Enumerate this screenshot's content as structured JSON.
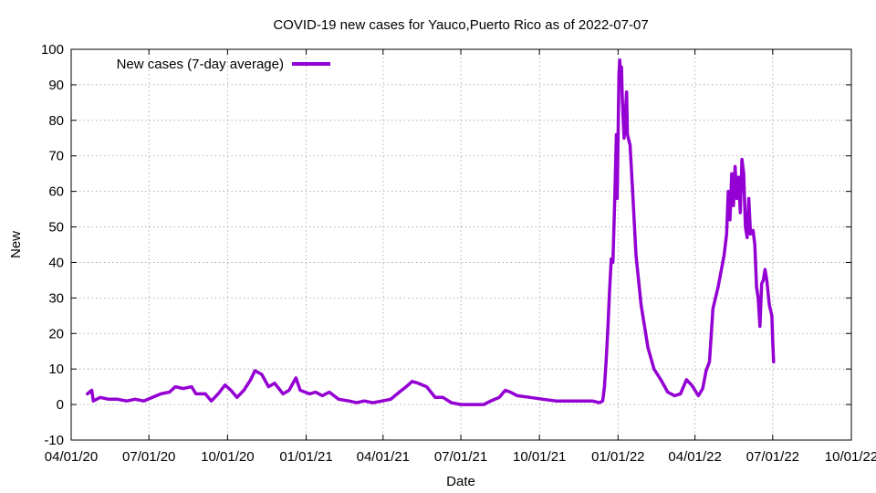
{
  "chart_data": {
    "type": "line",
    "title": "COVID-19 new cases for Yauco,Puerto Rico as of 2022-07-07",
    "xlabel": "Date",
    "ylabel": "New",
    "xlim": [
      "2020-04-01",
      "2022-10-01"
    ],
    "ylim": [
      -10,
      100
    ],
    "x_ticks": [
      "04/01/20",
      "07/01/20",
      "10/01/20",
      "01/01/21",
      "04/01/21",
      "07/01/21",
      "10/01/21",
      "01/01/22",
      "04/01/22",
      "07/01/22",
      "10/01/22"
    ],
    "y_ticks": [
      -10,
      0,
      10,
      20,
      30,
      40,
      50,
      60,
      70,
      80,
      90,
      100
    ],
    "grid": true,
    "legend_position": "top-left",
    "series": [
      {
        "name": "New cases (7-day average)",
        "color": "#9400d3",
        "points": [
          [
            "2020-04-20",
            3
          ],
          [
            "2020-04-25",
            4
          ],
          [
            "2020-04-27",
            1
          ],
          [
            "2020-05-05",
            2
          ],
          [
            "2020-05-15",
            1.5
          ],
          [
            "2020-05-25",
            1.5
          ],
          [
            "2020-06-05",
            1
          ],
          [
            "2020-06-15",
            1.5
          ],
          [
            "2020-06-25",
            1
          ],
          [
            "2020-07-05",
            2
          ],
          [
            "2020-07-15",
            3
          ],
          [
            "2020-07-25",
            3.5
          ],
          [
            "2020-08-01",
            5
          ],
          [
            "2020-08-10",
            4.5
          ],
          [
            "2020-08-20",
            5
          ],
          [
            "2020-08-25",
            3
          ],
          [
            "2020-09-05",
            3
          ],
          [
            "2020-09-12",
            1
          ],
          [
            "2020-09-20",
            3
          ],
          [
            "2020-09-28",
            5.5
          ],
          [
            "2020-10-05",
            4
          ],
          [
            "2020-10-12",
            2
          ],
          [
            "2020-10-20",
            4
          ],
          [
            "2020-10-28",
            7
          ],
          [
            "2020-11-02",
            9.5
          ],
          [
            "2020-11-10",
            8.5
          ],
          [
            "2020-11-18",
            5
          ],
          [
            "2020-11-25",
            6
          ],
          [
            "2020-12-05",
            3
          ],
          [
            "2020-12-12",
            4
          ],
          [
            "2020-12-20",
            7.5
          ],
          [
            "2020-12-25",
            4
          ],
          [
            "2021-01-05",
            3
          ],
          [
            "2021-01-12",
            3.5
          ],
          [
            "2021-01-20",
            2.5
          ],
          [
            "2021-01-28",
            3.5
          ],
          [
            "2021-02-08",
            1.5
          ],
          [
            "2021-02-20",
            1
          ],
          [
            "2021-03-01",
            0.5
          ],
          [
            "2021-03-10",
            1
          ],
          [
            "2021-03-20",
            0.5
          ],
          [
            "2021-03-31",
            1
          ],
          [
            "2021-04-10",
            1.5
          ],
          [
            "2021-04-20",
            3.5
          ],
          [
            "2021-04-28",
            5
          ],
          [
            "2021-05-05",
            6.5
          ],
          [
            "2021-05-12",
            6
          ],
          [
            "2021-05-22",
            5
          ],
          [
            "2021-06-01",
            2
          ],
          [
            "2021-06-10",
            2
          ],
          [
            "2021-06-20",
            0.5
          ],
          [
            "2021-07-01",
            0
          ],
          [
            "2021-07-15",
            0
          ],
          [
            "2021-07-28",
            0
          ],
          [
            "2021-08-05",
            1
          ],
          [
            "2021-08-15",
            2
          ],
          [
            "2021-08-22",
            4
          ],
          [
            "2021-08-28",
            3.5
          ],
          [
            "2021-09-05",
            2.5
          ],
          [
            "2021-09-20",
            2
          ],
          [
            "2021-10-05",
            1.5
          ],
          [
            "2021-10-20",
            1
          ],
          [
            "2021-11-05",
            1
          ],
          [
            "2021-11-20",
            1
          ],
          [
            "2021-12-02",
            1
          ],
          [
            "2021-12-10",
            0.5
          ],
          [
            "2021-12-14",
            1
          ],
          [
            "2021-12-16",
            5
          ],
          [
            "2021-12-18",
            12
          ],
          [
            "2021-12-20",
            21
          ],
          [
            "2021-12-22",
            32
          ],
          [
            "2021-12-24",
            41
          ],
          [
            "2021-12-26",
            40
          ],
          [
            "2021-12-28",
            57
          ],
          [
            "2021-12-30",
            76
          ],
          [
            "2021-12-31",
            58
          ],
          [
            "2022-01-02",
            93
          ],
          [
            "2022-01-03",
            97
          ],
          [
            "2022-01-04",
            90
          ],
          [
            "2022-01-05",
            95
          ],
          [
            "2022-01-06",
            86
          ],
          [
            "2022-01-08",
            75
          ],
          [
            "2022-01-10",
            84
          ],
          [
            "2022-01-11",
            88
          ],
          [
            "2022-01-12",
            76
          ],
          [
            "2022-01-15",
            73
          ],
          [
            "2022-01-18",
            60
          ],
          [
            "2022-01-22",
            42
          ],
          [
            "2022-01-28",
            28
          ],
          [
            "2022-02-05",
            16
          ],
          [
            "2022-02-12",
            10
          ],
          [
            "2022-02-20",
            7
          ],
          [
            "2022-02-28",
            3.5
          ],
          [
            "2022-03-08",
            2.5
          ],
          [
            "2022-03-15",
            3
          ],
          [
            "2022-03-22",
            7
          ],
          [
            "2022-03-28",
            5.5
          ],
          [
            "2022-04-05",
            2.5
          ],
          [
            "2022-04-10",
            4.5
          ],
          [
            "2022-04-14",
            9.5
          ],
          [
            "2022-04-18",
            12
          ],
          [
            "2022-04-22",
            27
          ],
          [
            "2022-04-28",
            33
          ],
          [
            "2022-05-05",
            42
          ],
          [
            "2022-05-08",
            48
          ],
          [
            "2022-05-10",
            60
          ],
          [
            "2022-05-12",
            52
          ],
          [
            "2022-05-14",
            65
          ],
          [
            "2022-05-16",
            56
          ],
          [
            "2022-05-18",
            67
          ],
          [
            "2022-05-20",
            58
          ],
          [
            "2022-05-22",
            64
          ],
          [
            "2022-05-24",
            54
          ],
          [
            "2022-05-26",
            69
          ],
          [
            "2022-05-28",
            65
          ],
          [
            "2022-05-30",
            50
          ],
          [
            "2022-06-01",
            47
          ],
          [
            "2022-06-03",
            58
          ],
          [
            "2022-06-05",
            48
          ],
          [
            "2022-06-08",
            49
          ],
          [
            "2022-06-10",
            45
          ],
          [
            "2022-06-12",
            33
          ],
          [
            "2022-06-14",
            30
          ],
          [
            "2022-06-16",
            22
          ],
          [
            "2022-06-18",
            34
          ],
          [
            "2022-06-20",
            35
          ],
          [
            "2022-06-22",
            38
          ],
          [
            "2022-06-24",
            35
          ],
          [
            "2022-06-27",
            28
          ],
          [
            "2022-06-30",
            25
          ],
          [
            "2022-07-01",
            18
          ],
          [
            "2022-07-02",
            12
          ]
        ]
      }
    ]
  }
}
